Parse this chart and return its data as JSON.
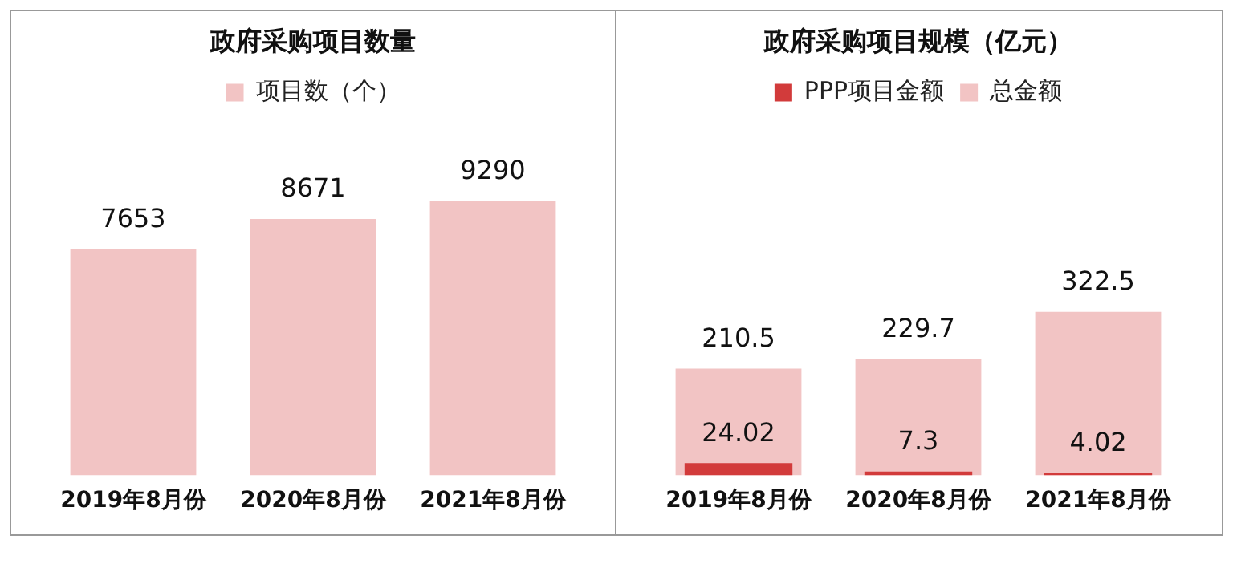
{
  "chart_data": [
    {
      "type": "bar",
      "title": "政府采购项目数量",
      "categories": [
        "2019年8月份",
        "2020年8月份",
        "2021年8月份"
      ],
      "series": [
        {
          "name": "项目数（个）",
          "color": "#f2c4c4",
          "values": [
            7653,
            8671,
            9290
          ]
        }
      ],
      "data_labels": true,
      "legend": "top",
      "tick_labels": "x",
      "grid": false
    },
    {
      "type": "bar",
      "title": "政府采购项目规模（亿元）",
      "categories": [
        "2019年8月份",
        "2020年8月份",
        "2021年8月份"
      ],
      "series": [
        {
          "name": "PPP项目金额",
          "color": "#d23b3b",
          "values": [
            24.02,
            7.3,
            4.02
          ]
        },
        {
          "name": "总金额",
          "color": "#f2c4c4",
          "values": [
            210.5,
            229.7,
            322.5
          ]
        }
      ],
      "data_labels": true,
      "legend": "top",
      "tick_labels": "x",
      "grid": false
    }
  ]
}
